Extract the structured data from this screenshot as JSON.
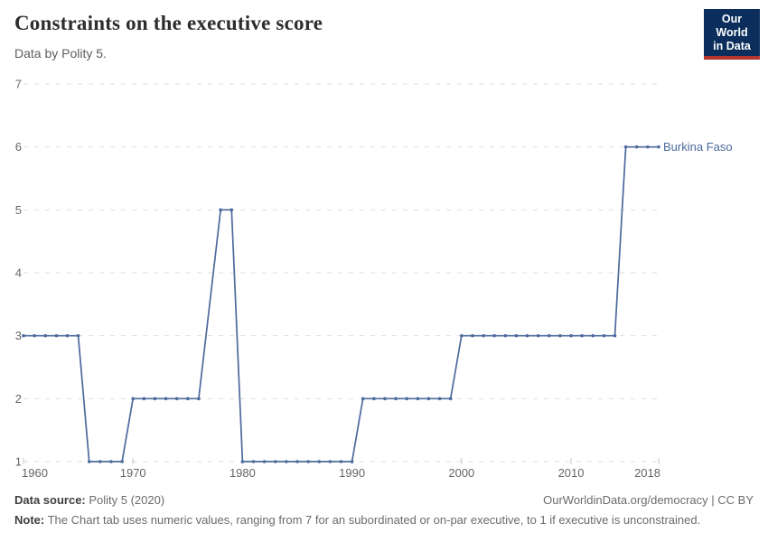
{
  "header": {
    "title": "Constraints on the executive score",
    "subtitle": "Data by Polity 5."
  },
  "logo": {
    "line1": "Our World",
    "line2": "in Data",
    "bg_color": "#0C2E5C",
    "bar_color": "#B5362E"
  },
  "chart_data": {
    "type": "line",
    "title": "Constraints on the executive score",
    "subtitle": "Data by Polity 5.",
    "xlabel": "",
    "ylabel": "",
    "xlim": [
      1960,
      2018
    ],
    "ylim": [
      1,
      7
    ],
    "xticks": [
      1960,
      1970,
      1980,
      1990,
      2000,
      2010,
      2018
    ],
    "yticks": [
      1,
      2,
      3,
      4,
      5,
      6,
      7
    ],
    "grid": "horizontal-dashed",
    "legend_position": "end-of-line-label",
    "series": [
      {
        "name": "Burkina Faso",
        "color": "#4C6A9C",
        "years": [
          1960,
          1961,
          1962,
          1963,
          1964,
          1965,
          1966,
          1967,
          1968,
          1969,
          1970,
          1971,
          1972,
          1973,
          1974,
          1975,
          1976,
          1977,
          1978,
          1979,
          1980,
          1981,
          1982,
          1983,
          1984,
          1985,
          1986,
          1987,
          1988,
          1989,
          1990,
          1991,
          1992,
          1993,
          1994,
          1995,
          1996,
          1997,
          1998,
          1999,
          2000,
          2001,
          2002,
          2003,
          2004,
          2005,
          2006,
          2007,
          2008,
          2009,
          2010,
          2011,
          2012,
          2013,
          2014,
          2015,
          2016,
          2017,
          2018
        ],
        "values": [
          3,
          3,
          3,
          3,
          3,
          3,
          1,
          1,
          1,
          1,
          2,
          2,
          2,
          2,
          2,
          2,
          2,
          null,
          5,
          5,
          1,
          1,
          1,
          1,
          1,
          1,
          1,
          1,
          1,
          1,
          1,
          2,
          2,
          2,
          2,
          2,
          2,
          2,
          2,
          2,
          3,
          3,
          3,
          3,
          3,
          3,
          3,
          3,
          3,
          3,
          3,
          3,
          3,
          3,
          3,
          6,
          6,
          6,
          6
        ]
      }
    ]
  },
  "colors": {
    "line": "#4C6A9C",
    "grid": "#DEDEDE",
    "axis_text": "#666666",
    "tick_mark": "#C8C8C8"
  },
  "footer": {
    "source_label": "Data source:",
    "source_value": " Polity 5 (2020)",
    "link": "OurWorldinData.org/democracy | CC BY",
    "note_label": "Note:",
    "note_value": " The Chart tab uses numeric values, ranging from 7 for an subordinated or on-par executive, to 1 if executive is unconstrained."
  }
}
